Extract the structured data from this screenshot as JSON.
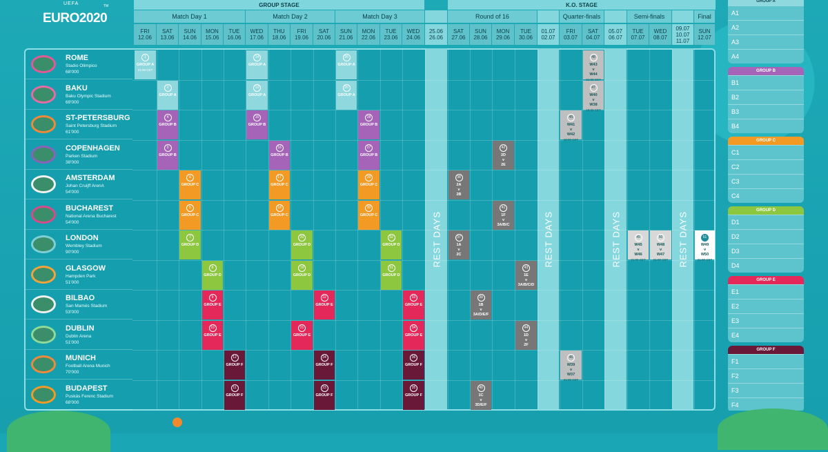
{
  "logo": {
    "uefa": "UEFA",
    "name": "EURO2020",
    "tm": "TM"
  },
  "stages": {
    "group": "GROUP STAGE",
    "ko": "K.O. STAGE"
  },
  "matchdays": [
    "Match Day 1",
    "Match Day 2",
    "Match Day 3",
    "Round of 16",
    "Quarter-finals",
    "Semi-finals",
    "Final"
  ],
  "days": [
    {
      "d": "FRI",
      "dt": "12.06"
    },
    {
      "d": "SAT",
      "dt": "13.06"
    },
    {
      "d": "SUN",
      "dt": "14.06"
    },
    {
      "d": "MON",
      "dt": "15.06"
    },
    {
      "d": "TUE",
      "dt": "16.06"
    },
    {
      "d": "WED",
      "dt": "17.06"
    },
    {
      "d": "THU",
      "dt": "18.06"
    },
    {
      "d": "FRI",
      "dt": "19.06"
    },
    {
      "d": "SAT",
      "dt": "20.06"
    },
    {
      "d": "SUN",
      "dt": "21.06"
    },
    {
      "d": "MON",
      "dt": "22.06"
    },
    {
      "d": "TUE",
      "dt": "23.06"
    },
    {
      "d": "WED",
      "dt": "24.06"
    },
    {
      "d": "",
      "dt": "25.06\n26.06"
    },
    {
      "d": "SAT",
      "dt": "27.06"
    },
    {
      "d": "SUN",
      "dt": "28.06"
    },
    {
      "d": "MON",
      "dt": "29.06"
    },
    {
      "d": "TUE",
      "dt": "30.06"
    },
    {
      "d": "",
      "dt": "01.07\n02.07"
    },
    {
      "d": "FRI",
      "dt": "03.07"
    },
    {
      "d": "SAT",
      "dt": "04.07"
    },
    {
      "d": "",
      "dt": "05.07\n06.07"
    },
    {
      "d": "TUE",
      "dt": "07.07"
    },
    {
      "d": "WED",
      "dt": "08.07"
    },
    {
      "d": "",
      "dt": "09.07\n10.07\n11.07"
    },
    {
      "d": "SUN",
      "dt": "12.07"
    }
  ],
  "rest_label": "REST DAYS",
  "venues": [
    {
      "city": "ROME",
      "stadium": "Stadio Olimpico",
      "cap": "68'000"
    },
    {
      "city": "BAKU",
      "stadium": "Baku Olympic Stadium",
      "cap": "69'000"
    },
    {
      "city": "ST-PETERSBURG",
      "stadium": "Saint Petersburg Stadium",
      "cap": "61'000"
    },
    {
      "city": "COPENHAGEN",
      "stadium": "Parken Stadium",
      "cap": "38'000"
    },
    {
      "city": "AMSTERDAM",
      "stadium": "Johan Cruijff ArenA",
      "cap": "54'000"
    },
    {
      "city": "BUCHAREST",
      "stadium": "National Arena Bucharest",
      "cap": "54'000"
    },
    {
      "city": "LONDON",
      "stadium": "Wembley Stadium",
      "cap": "90'000"
    },
    {
      "city": "GLASGOW",
      "stadium": "Hampden Park",
      "cap": "51'000"
    },
    {
      "city": "BILBAO",
      "stadium": "San Mamés Stadium",
      "cap": "53'000"
    },
    {
      "city": "DUBLIN",
      "stadium": "Dublin Arena",
      "cap": "51'000"
    },
    {
      "city": "MUNICH",
      "stadium": "Football Arena Munich",
      "cap": "70'000"
    },
    {
      "city": "BUDAPEST",
      "stadium": "Puskás Ferenc Stadium",
      "cap": "68'000"
    }
  ],
  "matches": [
    {
      "v": 0,
      "c": 0,
      "n": "1",
      "t": "GROUP A",
      "s": "21:00 CET",
      "col": "#8fd8de"
    },
    {
      "v": 0,
      "c": 5,
      "n": "14",
      "t": "GROUP A",
      "col": "#8fd8de"
    },
    {
      "v": 0,
      "c": 9,
      "n": "26",
      "t": "GROUP A",
      "col": "#8fd8de"
    },
    {
      "v": 0,
      "c": 20,
      "n": "48",
      "t": "W43\nv\nW44",
      "s": "21:00 CET",
      "col": "#bfbfbf"
    },
    {
      "v": 1,
      "c": 1,
      "n": "2",
      "t": "GROUP A",
      "col": "#8fd8de"
    },
    {
      "v": 1,
      "c": 5,
      "n": "13",
      "t": "GROUP A",
      "col": "#8fd8de"
    },
    {
      "v": 1,
      "c": 9,
      "n": "25",
      "t": "GROUP A",
      "col": "#8fd8de"
    },
    {
      "v": 1,
      "c": 20,
      "n": "47",
      "t": "W40\nv\nW38",
      "s": "18:00 CET",
      "col": "#bfbfbf"
    },
    {
      "v": 2,
      "c": 1,
      "n": "4",
      "t": "GROUP B",
      "col": "#a564b8"
    },
    {
      "v": 2,
      "c": 5,
      "n": "15",
      "t": "GROUP B",
      "col": "#a564b8"
    },
    {
      "v": 2,
      "c": 10,
      "n": "28",
      "t": "GROUP B",
      "col": "#a564b8"
    },
    {
      "v": 2,
      "c": 19,
      "n": "45",
      "t": "W41\nv\nW42",
      "s": "18:00 CET",
      "col": "#bfbfbf"
    },
    {
      "v": 3,
      "c": 1,
      "n": "3",
      "t": "GROUP B",
      "col": "#a564b8"
    },
    {
      "v": 3,
      "c": 6,
      "n": "16",
      "t": "GROUP B",
      "col": "#a564b8"
    },
    {
      "v": 3,
      "c": 10,
      "n": "27",
      "t": "GROUP B",
      "col": "#a564b8"
    },
    {
      "v": 3,
      "c": 16,
      "n": "42",
      "t": "2D\nv\n2E",
      "col": "#777777"
    },
    {
      "v": 4,
      "c": 2,
      "n": "6",
      "t": "GROUP C",
      "col": "#f39a24"
    },
    {
      "v": 4,
      "c": 6,
      "n": "17",
      "t": "GROUP C",
      "col": "#f39a24"
    },
    {
      "v": 4,
      "c": 10,
      "n": "29",
      "t": "GROUP C",
      "col": "#f39a24"
    },
    {
      "v": 4,
      "c": 14,
      "n": "38",
      "t": "2A\nv\n2B",
      "col": "#777777"
    },
    {
      "v": 5,
      "c": 2,
      "n": "5",
      "t": "GROUP C",
      "col": "#f39a24"
    },
    {
      "v": 5,
      "c": 6,
      "n": "18",
      "t": "GROUP C",
      "col": "#f39a24"
    },
    {
      "v": 5,
      "c": 10,
      "n": "30",
      "t": "GROUP C",
      "col": "#f39a24"
    },
    {
      "v": 5,
      "c": 16,
      "n": "41",
      "t": "1F\nv\n3A/B/C",
      "col": "#777777"
    },
    {
      "v": 6,
      "c": 2,
      "n": "7",
      "t": "GROUP D",
      "col": "#8dc63f"
    },
    {
      "v": 6,
      "c": 7,
      "n": "20",
      "t": "GROUP D",
      "col": "#8dc63f"
    },
    {
      "v": 6,
      "c": 11,
      "n": "32",
      "t": "GROUP D",
      "col": "#8dc63f"
    },
    {
      "v": 6,
      "c": 14,
      "n": "37",
      "t": "1A\nv\n2C",
      "col": "#777777"
    },
    {
      "v": 6,
      "c": 22,
      "n": "49",
      "t": "W45\nv\nW46",
      "s": "21:00 CET",
      "col": "#d8d8d8"
    },
    {
      "v": 6,
      "c": 23,
      "n": "50",
      "t": "W48\nv\nW47",
      "s": "21:00 CET",
      "col": "#d8d8d8"
    },
    {
      "v": 6,
      "c": 25,
      "n": "51",
      "t": "W49\nv\nW50",
      "s": "21:00 CET",
      "col": "#ffffff",
      "dark": true
    },
    {
      "v": 7,
      "c": 3,
      "n": "8",
      "t": "GROUP D",
      "col": "#8dc63f"
    },
    {
      "v": 7,
      "c": 7,
      "n": "19",
      "t": "GROUP D",
      "col": "#8dc63f"
    },
    {
      "v": 7,
      "c": 11,
      "n": "31",
      "t": "GROUP D",
      "col": "#8dc63f"
    },
    {
      "v": 7,
      "c": 17,
      "n": "43",
      "t": "1E\nv\n3A/B/C/D",
      "col": "#777777"
    },
    {
      "v": 8,
      "c": 3,
      "n": "9",
      "t": "GROUP E",
      "col": "#e4285a"
    },
    {
      "v": 8,
      "c": 8,
      "n": "22",
      "t": "GROUP E",
      "col": "#e4285a"
    },
    {
      "v": 8,
      "c": 12,
      "n": "33",
      "t": "GROUP E",
      "col": "#e4285a"
    },
    {
      "v": 8,
      "c": 15,
      "n": "39",
      "t": "1B\nv\n3A/D/E/F",
      "col": "#777777"
    },
    {
      "v": 9,
      "c": 3,
      "n": "10",
      "t": "GROUP E",
      "col": "#e4285a"
    },
    {
      "v": 9,
      "c": 7,
      "n": "21",
      "t": "GROUP E",
      "col": "#e4285a"
    },
    {
      "v": 9,
      "c": 12,
      "n": "34",
      "t": "GROUP E",
      "col": "#e4285a"
    },
    {
      "v": 9,
      "c": 17,
      "n": "44",
      "t": "1D\nv\n2F",
      "col": "#777777"
    },
    {
      "v": 10,
      "c": 4,
      "n": "12",
      "t": "GROUP F",
      "col": "#6a1838"
    },
    {
      "v": 10,
      "c": 8,
      "n": "24",
      "t": "GROUP F",
      "col": "#6a1838"
    },
    {
      "v": 10,
      "c": 12,
      "n": "36",
      "t": "GROUP F",
      "col": "#6a1838"
    },
    {
      "v": 10,
      "c": 19,
      "n": "46",
      "t": "W39\nv\nW37",
      "s": "21:00 CET",
      "col": "#bfbfbf"
    },
    {
      "v": 11,
      "c": 4,
      "n": "11",
      "t": "GROUP F",
      "col": "#6a1838"
    },
    {
      "v": 11,
      "c": 8,
      "n": "23",
      "t": "GROUP F",
      "col": "#6a1838"
    },
    {
      "v": 11,
      "c": 12,
      "n": "35",
      "t": "GROUP F",
      "col": "#6a1838"
    },
    {
      "v": 11,
      "c": 15,
      "n": "40",
      "t": "1C\nv\n3D/E/F",
      "col": "#777777"
    }
  ],
  "groups": [
    {
      "name": "GROUP A",
      "col": "#8fd8de",
      "rows": [
        "A1",
        "A2",
        "A3",
        "A4"
      ]
    },
    {
      "name": "GROUP B",
      "col": "#a564b8",
      "rows": [
        "B1",
        "B2",
        "B3",
        "B4"
      ]
    },
    {
      "name": "GROUP C",
      "col": "#f39a24",
      "rows": [
        "C1",
        "C2",
        "C3",
        "C4"
      ]
    },
    {
      "name": "GROUP D",
      "col": "#8dc63f",
      "rows": [
        "D1",
        "D2",
        "D3",
        "D4"
      ]
    },
    {
      "name": "GROUP E",
      "col": "#e4285a",
      "rows": [
        "E1",
        "E2",
        "E3",
        "E4"
      ]
    },
    {
      "name": "GROUP F",
      "col": "#6a1838",
      "rows": [
        "F1",
        "F2",
        "F3",
        "F4"
      ]
    }
  ]
}
